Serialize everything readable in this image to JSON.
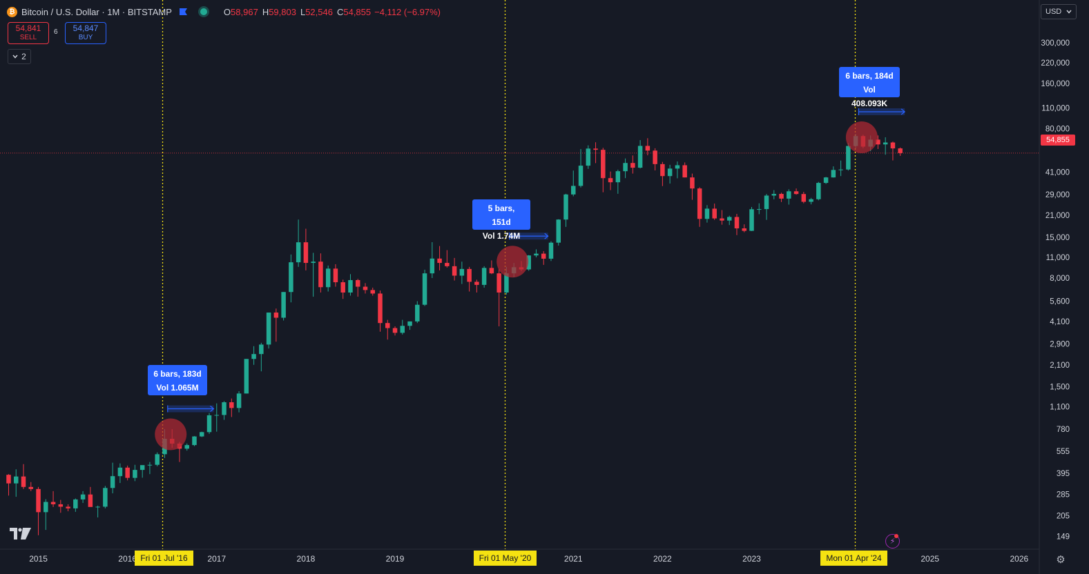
{
  "header": {
    "symbol_title": "Bitcoin / U.S. Dollar · 1M · BITSTAMP",
    "ohlc": [
      {
        "key": "O",
        "value": "58,967"
      },
      {
        "key": "H",
        "value": "59,803"
      },
      {
        "key": "L",
        "value": "52,546"
      },
      {
        "key": "C",
        "value": "54,855"
      }
    ],
    "change": "−4,112 (−6.97%)"
  },
  "trade": {
    "sell_price": "54,841",
    "sell_label": "SELL",
    "spread": "6",
    "buy_price": "54,847",
    "buy_label": "BUY"
  },
  "indicators_toggle": {
    "count": "2"
  },
  "currency": {
    "selected": "USD"
  },
  "last_price_label": "54,855",
  "colors": {
    "up": "#22ab94",
    "down": "#f23645",
    "background": "#161a25",
    "measure": "#2962ff",
    "date_marker": "#f5e211",
    "marker_line": "#f5e211",
    "circle_highlight": "#b22833"
  },
  "chart_data": {
    "type": "candlestick",
    "interval": "1M",
    "scale": "log",
    "ylim": [
      135,
      400000
    ],
    "y_ticks": [
      {
        "v": 300000,
        "label": "300,000"
      },
      {
        "v": 220000,
        "label": "220,000"
      },
      {
        "v": 160000,
        "label": "160,000"
      },
      {
        "v": 110000,
        "label": "110,000"
      },
      {
        "v": 80000,
        "label": "80,000"
      },
      {
        "v": 41000,
        "label": "41,000"
      },
      {
        "v": 29000,
        "label": "29,000"
      },
      {
        "v": 21000,
        "label": "21,000"
      },
      {
        "v": 15000,
        "label": "15,000"
      },
      {
        "v": 11000,
        "label": "11,000"
      },
      {
        "v": 8000,
        "label": "8,000"
      },
      {
        "v": 5600,
        "label": "5,600"
      },
      {
        "v": 4100,
        "label": "4,100"
      },
      {
        "v": 2900,
        "label": "2,900"
      },
      {
        "v": 2100,
        "label": "2,100"
      },
      {
        "v": 1500,
        "label": "1,500"
      },
      {
        "v": 1100,
        "label": "1,100"
      },
      {
        "v": 780,
        "label": "780"
      },
      {
        "v": 555,
        "label": "555"
      },
      {
        "v": 395,
        "label": "395"
      },
      {
        "v": 285,
        "label": "285"
      },
      {
        "v": 205,
        "label": "205"
      },
      {
        "v": 149,
        "label": "149"
      }
    ],
    "x_ticks": [
      {
        "date": "2015-01",
        "label": "2015"
      },
      {
        "date": "2016-01",
        "label": "2016"
      },
      {
        "date": "2017-01",
        "label": "2017"
      },
      {
        "date": "2018-01",
        "label": "2018"
      },
      {
        "date": "2019-01",
        "label": "2019"
      },
      {
        "date": "2021-01",
        "label": "2021"
      },
      {
        "date": "2022-01",
        "label": "2022"
      },
      {
        "date": "2023-01",
        "label": "2023"
      },
      {
        "date": "2025-01",
        "label": "2025"
      },
      {
        "date": "2026-01",
        "label": "2026"
      }
    ],
    "start_month": "2014-09",
    "candles": [
      [
        386,
        390,
        280,
        338
      ],
      [
        338,
        420,
        275,
        376
      ],
      [
        376,
        455,
        310,
        320
      ],
      [
        320,
        345,
        300,
        310
      ],
      [
        310,
        320,
        152,
        217
      ],
      [
        217,
        265,
        165,
        254
      ],
      [
        254,
        300,
        235,
        245
      ],
      [
        245,
        262,
        215,
        236
      ],
      [
        236,
        245,
        220,
        230
      ],
      [
        230,
        268,
        218,
        264
      ],
      [
        264,
        300,
        250,
        285
      ],
      [
        285,
        320,
        270,
        235
      ],
      [
        235,
        240,
        200,
        236
      ],
      [
        236,
        325,
        230,
        315
      ],
      [
        315,
        465,
        290,
        378
      ],
      [
        378,
        460,
        340,
        431
      ],
      [
        431,
        445,
        354,
        368
      ],
      [
        368,
        450,
        350,
        416
      ],
      [
        416,
        425,
        369,
        448
      ],
      [
        448,
        470,
        390,
        450
      ],
      [
        450,
        545,
        440,
        530
      ],
      [
        530,
        780,
        500,
        672
      ],
      [
        672,
        780,
        585,
        624
      ],
      [
        624,
        640,
        470,
        577
      ],
      [
        577,
        625,
        560,
        610
      ],
      [
        610,
        700,
        600,
        697
      ],
      [
        697,
        750,
        690,
        745
      ],
      [
        745,
        1000,
        725,
        965
      ],
      [
        965,
        1160,
        750,
        970
      ],
      [
        970,
        1200,
        900,
        1180
      ],
      [
        1180,
        1250,
        940,
        1080
      ],
      [
        1080,
        1400,
        1010,
        1350
      ],
      [
        1350,
        2300,
        1350,
        2300
      ],
      [
        2300,
        2800,
        2100,
        2480
      ],
      [
        2480,
        2950,
        1900,
        2870
      ],
      [
        2870,
        4700,
        2700,
        4700
      ],
      [
        4700,
        5000,
        3000,
        4340
      ],
      [
        4340,
        6450,
        4160,
        6450
      ],
      [
        6450,
        11500,
        5500,
        10200
      ],
      [
        10200,
        19700,
        9500,
        13880
      ],
      [
        13880,
        17100,
        9000,
        10100
      ],
      [
        10100,
        11800,
        6000,
        10300
      ],
      [
        10300,
        11700,
        6400,
        6950
      ],
      [
        6950,
        9700,
        6500,
        9250
      ],
      [
        9250,
        9900,
        7000,
        7500
      ],
      [
        7500,
        7800,
        5800,
        6400
      ],
      [
        6400,
        8500,
        6100,
        7750
      ],
      [
        7750,
        7900,
        6000,
        7000
      ],
      [
        7000,
        7400,
        6300,
        6650
      ],
      [
        6650,
        6900,
        6100,
        6300
      ],
      [
        6300,
        6600,
        3500,
        4000
      ],
      [
        4000,
        4200,
        3100,
        3700
      ],
      [
        3700,
        3800,
        3300,
        3440
      ],
      [
        3440,
        4200,
        3350,
        3830
      ],
      [
        3830,
        4100,
        3600,
        4100
      ],
      [
        4100,
        5600,
        4000,
        5300
      ],
      [
        5300,
        9100,
        5200,
        8600
      ],
      [
        8600,
        13900,
        8000,
        10800
      ],
      [
        10800,
        13100,
        9000,
        10100
      ],
      [
        10100,
        12300,
        9400,
        9600
      ],
      [
        9600,
        10900,
        7700,
        8300
      ],
      [
        8300,
        10300,
        7300,
        9200
      ],
      [
        9200,
        9500,
        6500,
        7550
      ],
      [
        7550,
        7800,
        6400,
        7200
      ],
      [
        7200,
        9600,
        6900,
        9350
      ],
      [
        9350,
        10500,
        8500,
        8600
      ],
      [
        8600,
        9200,
        3800,
        6400
      ],
      [
        6400,
        9500,
        6200,
        8600
      ],
      [
        8600,
        10100,
        8100,
        9450
      ],
      [
        9450,
        10400,
        8900,
        9140
      ],
      [
        9140,
        11400,
        8950,
        11330
      ],
      [
        11330,
        12450,
        11000,
        11650
      ],
      [
        11650,
        12100,
        9800,
        10780
      ],
      [
        10780,
        14100,
        10400,
        13800
      ],
      [
        13800,
        19800,
        13200,
        19700
      ],
      [
        19700,
        29300,
        17600,
        29000
      ],
      [
        29000,
        41900,
        28200,
        33100
      ],
      [
        33100,
        58400,
        32300,
        45200
      ],
      [
        45200,
        61800,
        43000,
        58800
      ],
      [
        58800,
        64800,
        47000,
        57700
      ],
      [
        57700,
        59500,
        30000,
        37300
      ],
      [
        37300,
        41300,
        31000,
        35000
      ],
      [
        35000,
        42500,
        29300,
        41500
      ],
      [
        41500,
        50500,
        37300,
        47100
      ],
      [
        47100,
        52900,
        40000,
        43800
      ],
      [
        43800,
        67000,
        43300,
        61300
      ],
      [
        61300,
        69000,
        53000,
        57000
      ],
      [
        57000,
        59100,
        42000,
        46300
      ],
      [
        46300,
        47900,
        33000,
        38500
      ],
      [
        38500,
        45800,
        34300,
        43200
      ],
      [
        43200,
        48200,
        37200,
        45500
      ],
      [
        45500,
        47500,
        37700,
        37700
      ],
      [
        37700,
        40000,
        26700,
        31800
      ],
      [
        31800,
        32400,
        17600,
        19900
      ],
      [
        19900,
        24600,
        18800,
        23300
      ],
      [
        23300,
        25200,
        19600,
        20050
      ],
      [
        20050,
        22800,
        18200,
        19400
      ],
      [
        19400,
        20900,
        18100,
        20500
      ],
      [
        20500,
        21500,
        15500,
        17200
      ],
      [
        17200,
        18300,
        16200,
        16550
      ],
      [
        16550,
        23900,
        16500,
        23100
      ],
      [
        23100,
        25300,
        21400,
        23150
      ],
      [
        23150,
        29200,
        19600,
        28500
      ],
      [
        28500,
        31000,
        26900,
        29250
      ],
      [
        29250,
        29800,
        25800,
        27200
      ],
      [
        27200,
        31400,
        24800,
        30450
      ],
      [
        30450,
        31800,
        28900,
        29200
      ],
      [
        29200,
        30200,
        25300,
        25900
      ],
      [
        25900,
        27500,
        24900,
        26950
      ],
      [
        26950,
        35200,
        26500,
        34650
      ],
      [
        34650,
        38000,
        34100,
        37700
      ],
      [
        37700,
        44700,
        37600,
        42300
      ],
      [
        42300,
        48900,
        38500,
        42600
      ],
      [
        42600,
        64000,
        41900,
        61200
      ],
      [
        61200,
        73800,
        59000,
        71300
      ],
      [
        71300,
        72800,
        59100,
        60600
      ],
      [
        60600,
        71900,
        56500,
        67500
      ],
      [
        67500,
        72000,
        58400,
        62700
      ],
      [
        62700,
        70000,
        53500,
        64600
      ],
      [
        64600,
        65500,
        49000,
        58970
      ],
      [
        58967,
        59803,
        52546,
        54855
      ]
    ],
    "measurements": [
      {
        "bars_label": "6 bars, 183d",
        "vol_label": "Vol 1.065M",
        "date_label": "Fri 01 Jul '16"
      },
      {
        "bars_label": "5 bars, 151d",
        "vol_label": "Vol 1.74M",
        "date_label": "Fri 01 May '20"
      },
      {
        "bars_label": "6 bars, 184d",
        "vol_label": "Vol 408.093K",
        "date_label": "Mon 01 Apr '24"
      }
    ]
  }
}
